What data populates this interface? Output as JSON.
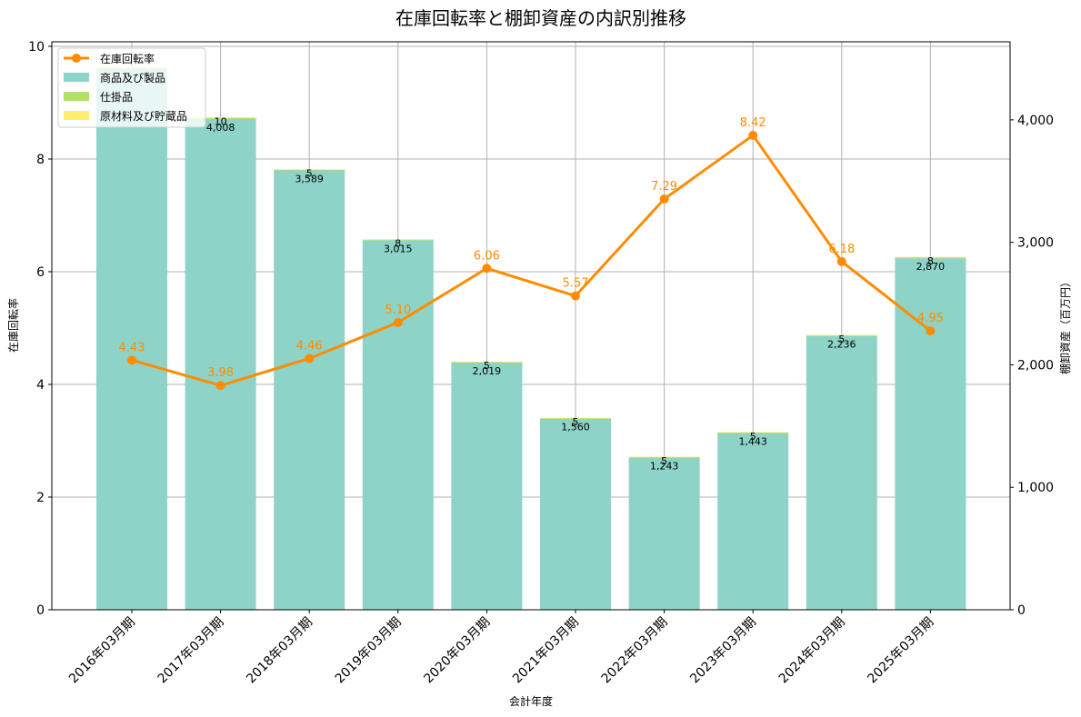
{
  "chart_data": {
    "type": "bar+line",
    "title": "在庫回転率と棚卸資産の内訳別推移",
    "xlabel": "会計年度",
    "ylabel_left": "在庫回転率",
    "ylabel_right": "棚卸資産（百万円）",
    "categories": [
      "2016年03月期",
      "2017年03月期",
      "2018年03月期",
      "2019年03月期",
      "2020年03月期",
      "2021年03月期",
      "2022年03月期",
      "2023年03月期",
      "2024年03月期",
      "2025年03月期"
    ],
    "ylim_left": [
      0,
      10.08
    ],
    "ylim_right": [
      0,
      4637
    ],
    "yticks_left": [
      0,
      2,
      4,
      6,
      8,
      10
    ],
    "yticks_right": [
      0,
      1000,
      2000,
      3000,
      4000
    ],
    "yticks_right_labels": [
      "0",
      "1,000",
      "2,000",
      "3,000",
      "4,000"
    ],
    "grid": true,
    "legend_position": "upper left",
    "series": [
      {
        "name": "在庫回転率",
        "type": "line",
        "axis": "left",
        "color": "#ff8c00",
        "values": [
          4.43,
          3.98,
          4.46,
          5.1,
          6.06,
          5.57,
          7.29,
          8.42,
          6.18,
          4.95
        ],
        "labels": [
          "4.43",
          "3.98",
          "4.46",
          "5.10",
          "6.06",
          "5.57",
          "7.29",
          "8.42",
          "6.18",
          "4.95"
        ]
      },
      {
        "name": "商品及び製品",
        "type": "bar",
        "axis": "right",
        "stack": 1,
        "color": "#8dd3c7",
        "values": [
          4414,
          4008,
          3589,
          3015,
          2019,
          1560,
          1243,
          1443,
          2236,
          2870
        ],
        "labels": [
          "",
          "4,008",
          "3,589",
          "3,015",
          "2,019",
          "1,560",
          "1,243",
          "1,443",
          "2,236",
          "2,870"
        ]
      },
      {
        "name": "仕掛品",
        "type": "bar",
        "axis": "right",
        "stack": 1,
        "color": "#b3de69",
        "values": [
          10,
          10,
          5,
          8,
          5,
          5,
          5,
          5,
          5,
          8
        ],
        "labels": [
          "",
          "10",
          "5",
          "8",
          "5",
          "5",
          "5",
          "5",
          "5",
          "8"
        ]
      },
      {
        "name": "原材料及び貯蔵品",
        "type": "bar",
        "axis": "right",
        "stack": 1,
        "color": "#ffed6f",
        "values": [
          3,
          3,
          3,
          3,
          2,
          3,
          2,
          3,
          3,
          3
        ]
      }
    ]
  }
}
